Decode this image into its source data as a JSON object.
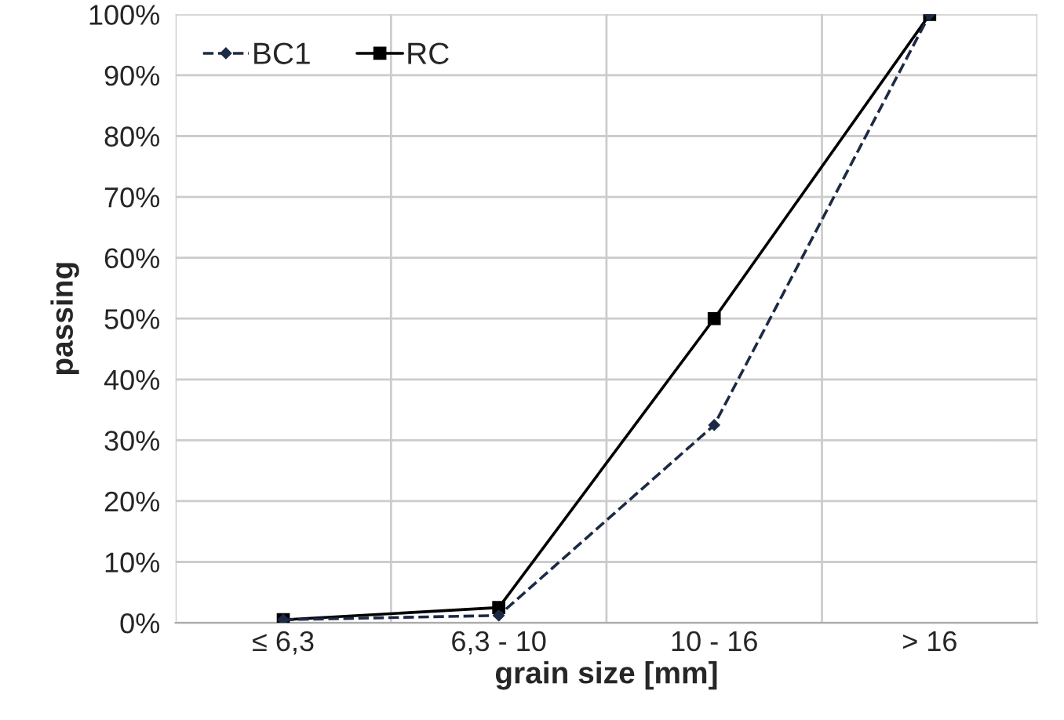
{
  "chart_data": {
    "type": "line",
    "xlabel": "grain size [mm]",
    "ylabel": "passing",
    "categories": [
      "≤ 6,3",
      "6,3 - 10",
      "10 - 16",
      "> 16"
    ],
    "series": [
      {
        "name": "BC1",
        "color": "#1c2a44",
        "values": [
          0.5,
          1.2,
          32.5,
          100
        ],
        "marker": "diamond",
        "line_style": "dashed"
      },
      {
        "name": "RC",
        "color": "#000000",
        "values": [
          0.5,
          2.5,
          50,
          100
        ],
        "marker": "square",
        "line_style": "solid"
      }
    ],
    "ylim": [
      0,
      100
    ],
    "yticks": [
      {
        "value": 0,
        "label": "0%"
      },
      {
        "value": 10,
        "label": "10%"
      },
      {
        "value": 20,
        "label": "20%"
      },
      {
        "value": 30,
        "label": "30%"
      },
      {
        "value": 40,
        "label": "40%"
      },
      {
        "value": 50,
        "label": "50%"
      },
      {
        "value": 60,
        "label": "60%"
      },
      {
        "value": 70,
        "label": "70%"
      },
      {
        "value": 80,
        "label": "80%"
      },
      {
        "value": 90,
        "label": "90%"
      },
      {
        "value": 100,
        "label": "100%"
      }
    ],
    "grid": true,
    "legend": "top left"
  }
}
